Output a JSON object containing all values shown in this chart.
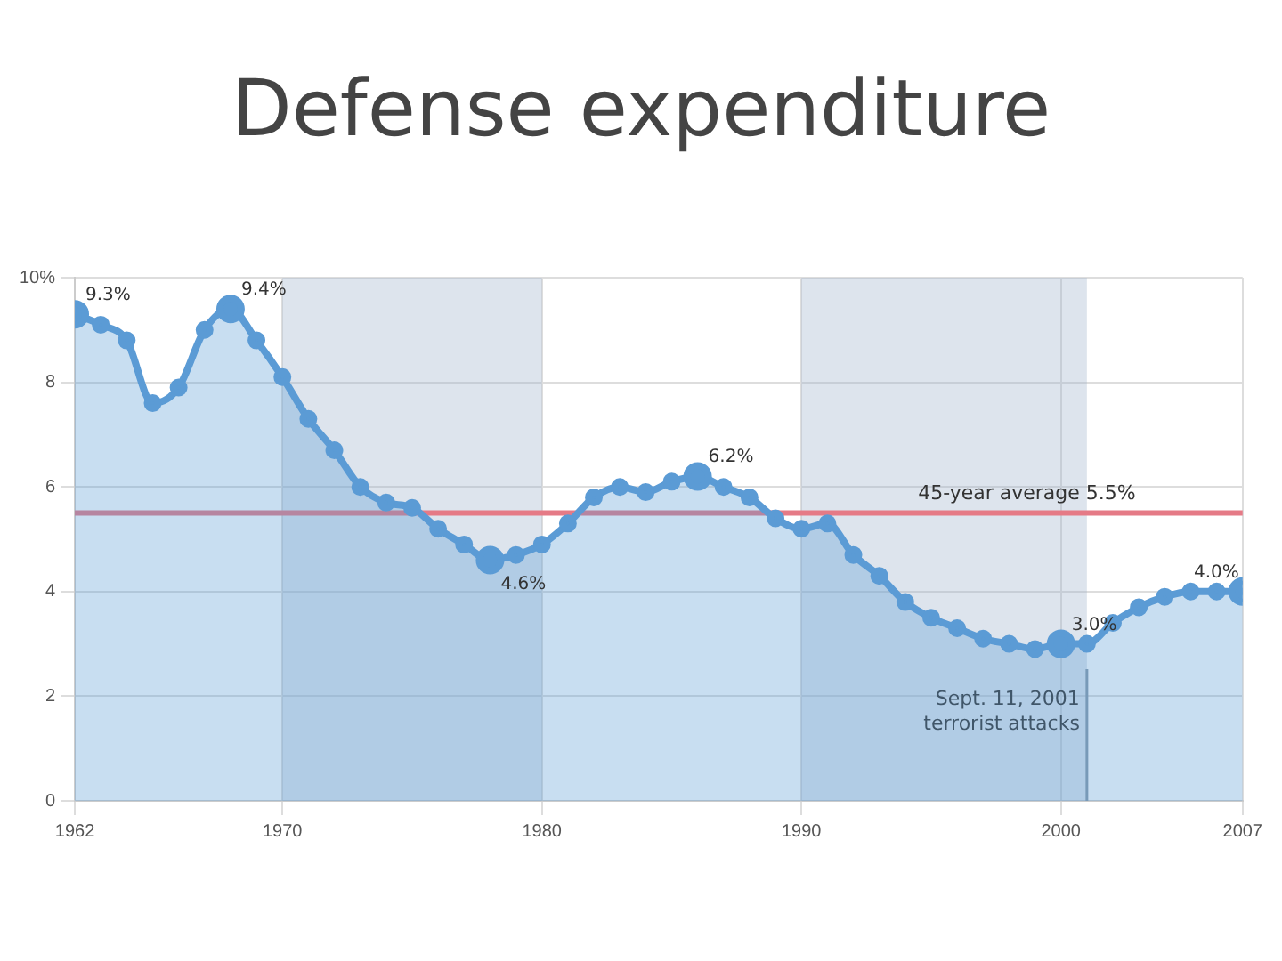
{
  "chart_data": {
    "type": "area",
    "title": "Defense expenditure",
    "x": [
      1962,
      1963,
      1964,
      1965,
      1966,
      1967,
      1968,
      1969,
      1970,
      1971,
      1972,
      1973,
      1974,
      1975,
      1976,
      1977,
      1978,
      1979,
      1980,
      1981,
      1982,
      1983,
      1984,
      1985,
      1986,
      1987,
      1988,
      1989,
      1990,
      1991,
      1992,
      1993,
      1994,
      1995,
      1996,
      1997,
      1998,
      1999,
      2000,
      2001,
      2002,
      2003,
      2004,
      2005,
      2006,
      2007
    ],
    "series": [
      {
        "color": "#5b9bd5",
        "values": [
          9.3,
          9.1,
          8.8,
          7.6,
          7.9,
          9.0,
          9.4,
          8.8,
          8.1,
          7.3,
          6.7,
          6.0,
          5.7,
          5.6,
          5.2,
          4.9,
          4.6,
          4.7,
          4.9,
          5.3,
          5.8,
          6.0,
          5.9,
          6.1,
          6.2,
          6.0,
          5.8,
          5.4,
          5.2,
          5.3,
          4.7,
          4.3,
          3.8,
          3.5,
          3.3,
          3.1,
          3.0,
          2.9,
          3.0,
          3.0,
          3.4,
          3.7,
          3.9,
          4.0,
          4.0,
          4.0
        ],
        "value_labels": [
          "9.3%",
          null,
          null,
          null,
          null,
          null,
          "9.4%",
          null,
          null,
          null,
          null,
          null,
          null,
          null,
          null,
          null,
          "4.6%",
          null,
          null,
          null,
          null,
          null,
          null,
          null,
          "6.2%",
          null,
          null,
          null,
          null,
          null,
          null,
          null,
          null,
          null,
          null,
          null,
          null,
          null,
          "3.0%",
          null,
          null,
          null,
          null,
          null,
          null,
          "4.0%"
        ]
      }
    ],
    "xlim": [
      1962,
      2007
    ],
    "xticks": [
      1962,
      1970,
      1980,
      1990,
      2000,
      2007
    ],
    "ylim": [
      0,
      10
    ],
    "yticks": [
      0,
      2,
      4,
      6,
      8,
      {
        "value": 10,
        "label": "10%"
      }
    ],
    "grid": true,
    "legend": false,
    "marker": "circle",
    "bands": [
      {
        "axis": "x",
        "from": 1970,
        "to": 1980,
        "color": "#9fb3cc"
      },
      {
        "axis": "x",
        "from": 1990,
        "to": 2001,
        "color": "#9fb3cc"
      }
    ],
    "ref_lines": [
      {
        "axis": "y",
        "value": 5.5,
        "label": "45-year average 5.5%",
        "color": "#e57a86"
      },
      {
        "axis": "x",
        "value": 2001,
        "label": "Sept. 11, 2001\nterrorist attacks",
        "color": "#8899aa"
      }
    ]
  }
}
